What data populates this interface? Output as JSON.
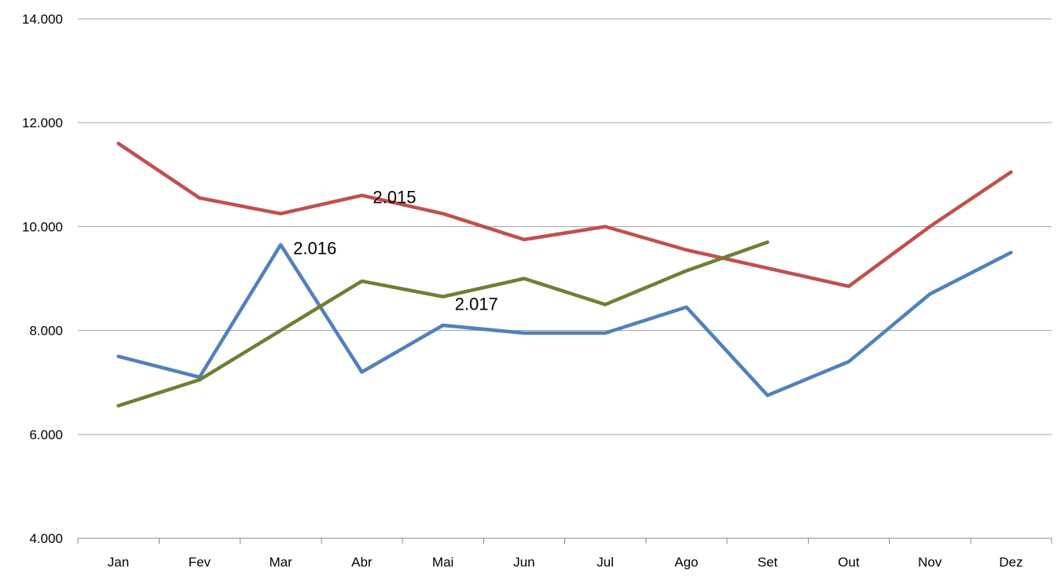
{
  "chart_data": {
    "type": "line",
    "title": "",
    "xlabel": "",
    "ylabel": "",
    "categories": [
      "Jan",
      "Fev",
      "Mar",
      "Abr",
      "Mai",
      "Jun",
      "Jul",
      "Ago",
      "Set",
      "Out",
      "Nov",
      "Dez"
    ],
    "series": [
      {
        "name": "2.015",
        "color": "#C0504D",
        "values": [
          11600,
          10550,
          10250,
          10600,
          10250,
          9750,
          10000,
          9550,
          9200,
          8850,
          10000,
          11050
        ],
        "label_anchor": {
          "point_index": 3,
          "dx": 14,
          "dy": 10
        }
      },
      {
        "name": "2.016",
        "color": "#4F81BD",
        "values": [
          7500,
          7100,
          9650,
          7200,
          8100,
          7950,
          7950,
          8450,
          6750,
          7400,
          8700,
          9500
        ],
        "label_anchor": {
          "point_index": 2,
          "dx": 16,
          "dy": 12
        }
      },
      {
        "name": "2.017",
        "color": "#6E7F32",
        "values": [
          6550,
          7050,
          8000,
          8950,
          8650,
          9000,
          8500,
          9150,
          9700
        ],
        "label_anchor": {
          "point_index": 4,
          "dx": 15,
          "dy": 17
        }
      }
    ],
    "y_axis": {
      "min": 4000,
      "max": 14000,
      "ticks": [
        {
          "value": 14000,
          "label": "14.000"
        },
        {
          "value": 12000,
          "label": "12.000"
        },
        {
          "value": 10000,
          "label": "10.000"
        },
        {
          "value": 8000,
          "label": "8.000"
        },
        {
          "value": 6000,
          "label": "6.000"
        },
        {
          "value": 4000,
          "label": "4.000"
        }
      ]
    },
    "grid": true,
    "legend_position": "none",
    "gridline_color": "#A6A6A6",
    "axis_color": "#898989",
    "label_color": "#000000"
  }
}
